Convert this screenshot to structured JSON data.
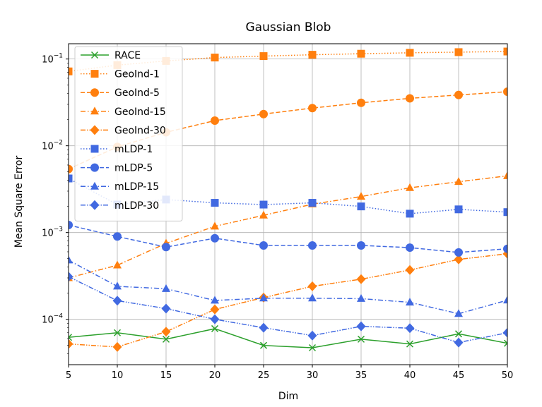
{
  "chart_data": {
    "type": "line",
    "title": "Gaussian Blob",
    "xlabel": "Dim",
    "ylabel": "Mean Square Error",
    "yscale": "log",
    "xlim": [
      5,
      50
    ],
    "ylim": [
      3e-05,
      0.15
    ],
    "grid": true,
    "legend_position": "top-left",
    "x": [
      5,
      10,
      15,
      20,
      25,
      30,
      35,
      40,
      45,
      50
    ],
    "x_ticks": [
      "5",
      "10",
      "15",
      "20",
      "25",
      "30",
      "35",
      "40",
      "45",
      "50"
    ],
    "y_ticks": [
      {
        "value": 0.0001,
        "base": "10",
        "exp": "−4"
      },
      {
        "value": 0.001,
        "base": "10",
        "exp": "−3"
      },
      {
        "value": 0.01,
        "base": "10",
        "exp": "−2"
      },
      {
        "value": 0.1,
        "base": "10",
        "exp": "−1"
      }
    ],
    "series": [
      {
        "name": "RACE",
        "color": "#2ca02c",
        "dash": "solid",
        "marker": "x",
        "values": [
          6.2e-05,
          7e-05,
          5.9e-05,
          7.8e-05,
          5e-05,
          4.7e-05,
          5.9e-05,
          5.2e-05,
          6.8e-05,
          5.3e-05
        ]
      },
      {
        "name": "GeoInd-1",
        "color": "#ff7f0e",
        "dash": "dotted",
        "marker": "square",
        "values": [
          0.072,
          0.085,
          0.095,
          0.104,
          0.108,
          0.112,
          0.115,
          0.118,
          0.12,
          0.122
        ]
      },
      {
        "name": "GeoInd-5",
        "color": "#ff7f0e",
        "dash": "dashed",
        "marker": "circle",
        "values": [
          0.0054,
          0.0097,
          0.0143,
          0.0195,
          0.0232,
          0.0272,
          0.0313,
          0.0352,
          0.0385,
          0.042
        ]
      },
      {
        "name": "GeoInd-15",
        "color": "#ff7f0e",
        "dash": "dashdot",
        "marker": "triangle",
        "values": [
          0.0003,
          0.00042,
          0.00075,
          0.00118,
          0.00158,
          0.00212,
          0.0026,
          0.00328,
          0.00385,
          0.0045
        ]
      },
      {
        "name": "GeoInd-30",
        "color": "#ff7f0e",
        "dash": "dashdotdot",
        "marker": "diamond",
        "values": [
          5.2e-05,
          4.8e-05,
          7.2e-05,
          0.00013,
          0.000178,
          0.00024,
          0.00029,
          0.00037,
          0.00049,
          0.00057
        ]
      },
      {
        "name": "mLDP-1",
        "color": "#4169e1",
        "dash": "dotted",
        "marker": "square",
        "values": [
          0.0042,
          0.0021,
          0.0024,
          0.0022,
          0.0021,
          0.0022,
          0.002,
          0.00165,
          0.00185,
          0.00172
        ]
      },
      {
        "name": "mLDP-5",
        "color": "#4169e1",
        "dash": "dashed",
        "marker": "circle",
        "values": [
          0.00122,
          0.0009,
          0.00068,
          0.00086,
          0.00071,
          0.00071,
          0.00071,
          0.00067,
          0.00059,
          0.00065
        ]
      },
      {
        "name": "mLDP-15",
        "color": "#4169e1",
        "dash": "dashdot",
        "marker": "triangle",
        "values": [
          0.00048,
          0.00024,
          0.000225,
          0.000165,
          0.000175,
          0.000175,
          0.000173,
          0.000157,
          0.000116,
          0.000166
        ]
      },
      {
        "name": "mLDP-30",
        "color": "#4169e1",
        "dash": "dashdotdot",
        "marker": "diamond",
        "values": [
          0.00031,
          0.000164,
          0.000133,
          0.0001,
          8e-05,
          6.5e-05,
          8.3e-05,
          7.9e-05,
          5.4e-05,
          7e-05
        ]
      }
    ]
  }
}
